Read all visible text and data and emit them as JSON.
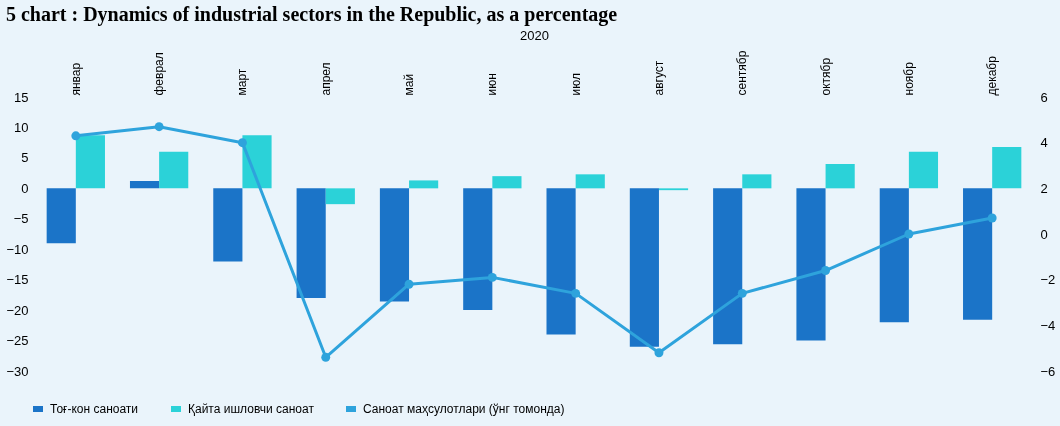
{
  "chart_data": {
    "type": "bar",
    "title": "5 chart : Dynamics of industrial sectors in the Republic, as a percentage",
    "xlabel": "2020",
    "categories": [
      "январ",
      "феврал",
      "март",
      "апрел",
      "май",
      "июн",
      "июл",
      "август",
      "сентябр",
      "октябр",
      "ноябр",
      "декабр"
    ],
    "series": [
      {
        "name": "Тоғ-кон саноати",
        "color": "#1b74c8",
        "values": [
          -9,
          1.2,
          -12,
          -18,
          -18.6,
          -20,
          -24,
          -26,
          -25.6,
          -25,
          -22,
          -21.6
        ]
      },
      {
        "name": "Қайта ишловчи саноат",
        "color": "#2bd2d8",
        "values": [
          8.7,
          6,
          8.7,
          -2.6,
          1.3,
          2,
          2.3,
          -0.3,
          2.3,
          4,
          6,
          6.8
        ]
      },
      {
        "name": "Саноат маҳсулотлари (ўнг томонда)",
        "type": "line",
        "axis": "y2",
        "marker": "circle",
        "color": "#2ea3dc",
        "values": [
          4.3,
          4.7,
          4.0,
          -5.4,
          -2.2,
          -1.9,
          -2.6,
          -5.2,
          -2.6,
          -1.6,
          0,
          0.7
        ]
      }
    ],
    "ylim": [
      -30,
      15
    ],
    "yticks": [
      -30,
      -25,
      -20,
      -15,
      -10,
      -5,
      0,
      5,
      10,
      15
    ],
    "y2lim": [
      -6,
      6
    ],
    "y2ticks": [
      -6,
      -4,
      -2,
      0,
      2,
      4,
      6
    ],
    "grid": false,
    "legend": "bottom"
  }
}
